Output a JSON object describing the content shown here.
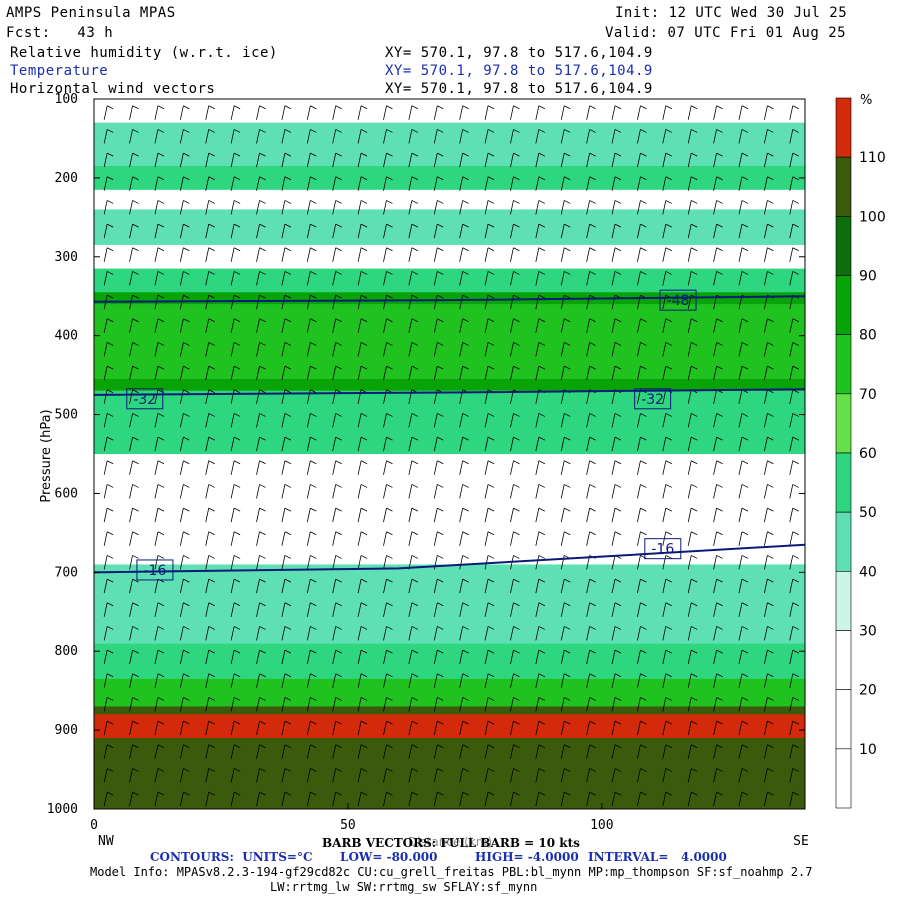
{
  "header": {
    "title": "AMPS Peninsula MPAS",
    "fcst": "Fcst:   43 h",
    "init": "Init: 12 UTC Wed 30 Jul 25",
    "valid": "Valid: 07 UTC Fri 01 Aug 25",
    "fields": [
      {
        "name": "Relative humidity (w.r.t. ice)",
        "xy": "XY= 570.1, 97.8 to 517.6,104.9"
      },
      {
        "name": "Temperature",
        "xy": "XY= 570.1, 97.8 to 517.6,104.9"
      },
      {
        "name": "Horizontal wind vectors",
        "xy": "XY= 570.1, 97.8 to 517.6,104.9"
      }
    ]
  },
  "chart_data": {
    "type": "heatmap",
    "xlabel": "Distance (km)",
    "ylabel": "Pressure (hPa)",
    "xlim": [
      0,
      140
    ],
    "ylim": [
      1000,
      100
    ],
    "x_ticks": [
      0,
      50,
      100
    ],
    "y_ticks": [
      100,
      200,
      300,
      400,
      500,
      600,
      700,
      800,
      900,
      1000
    ],
    "x_end_labels": [
      "NW",
      "SE"
    ],
    "colorbar": {
      "unit": "%",
      "levels": [
        10,
        20,
        30,
        40,
        50,
        60,
        70,
        80,
        90,
        100,
        110
      ],
      "colors": [
        "#ffffff",
        "#ffffff",
        "#ffffff",
        "#cdf5e6",
        "#5fe0b4",
        "#2ed680",
        "#67e04a",
        "#1fc21f",
        "#07a307",
        "#0e6e0e",
        "#3c5a0c",
        "#d22a0a"
      ]
    },
    "rh_bands": [
      {
        "p": [
          130,
          215
        ],
        "rh": 40
      },
      {
        "p": [
          185,
          215
        ],
        "rh": 50
      },
      {
        "p": [
          240,
          285
        ],
        "rh": 40
      },
      {
        "p": [
          315,
          355
        ],
        "rh": 50
      },
      {
        "p": [
          345,
          470
        ],
        "rh": 80
      },
      {
        "p": [
          360,
          455
        ],
        "rh": 70
      },
      {
        "p": [
          470,
          550
        ],
        "rh": 50
      },
      {
        "p": [
          690,
          790
        ],
        "rh": 40
      },
      {
        "p": [
          790,
          860
        ],
        "rh": 50
      },
      {
        "p": [
          835,
          875
        ],
        "rh": 70
      },
      {
        "p": [
          870,
          1000
        ],
        "rh": 100
      },
      {
        "p": [
          880,
          910
        ],
        "rh": 110
      }
    ],
    "temperature_contours": [
      {
        "label": "-32",
        "label_positions": [
          [
            10,
            480
          ],
          [
            110,
            480
          ]
        ],
        "points": [
          [
            0,
            475
          ],
          [
            70,
            472
          ],
          [
            140,
            468
          ]
        ]
      },
      {
        "label": "-48",
        "label_positions": [
          [
            115,
            355
          ]
        ],
        "points": [
          [
            0,
            357
          ],
          [
            70,
            355
          ],
          [
            140,
            350
          ]
        ]
      },
      {
        "label": "-16",
        "label_positions": [
          [
            12,
            697
          ],
          [
            112,
            670
          ]
        ],
        "points": [
          [
            0,
            700
          ],
          [
            60,
            695
          ],
          [
            140,
            665
          ]
        ]
      }
    ],
    "barb_note": "BARB VECTORS: FULL BARB = 10 kts",
    "contours": {
      "units": "CONTOURS:  UNITS=°C",
      "low": "LOW= -80.000",
      "high": "HIGH= -4.0000",
      "interval": "INTERVAL=   4.0000"
    }
  },
  "footer": {
    "model_info": "Model Info: MPASv8.2.3-194-gf29cd82c CU:cu_grell_freitas PBL:bl_mynn MP:mp_thompson SF:sf_noahmp 2.7",
    "model_info2": "LW:rrtmg_lw SW:rrtmg_sw SFLAY:sf_mynn"
  }
}
